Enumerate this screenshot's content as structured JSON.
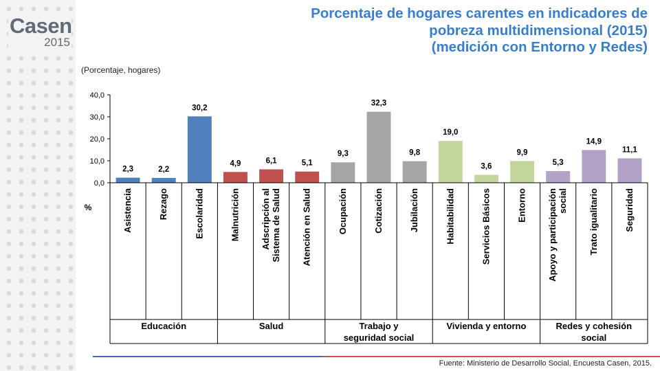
{
  "logo": {
    "word": "Casen",
    "year": "2015"
  },
  "title_lines": [
    "Porcentaje de hogares carentes en indicadores de",
    "pobreza multidimensional (2015)",
    "(medición con Entorno y Redes)"
  ],
  "subtitle": "(Porcentaje, hogares)",
  "source": "Fuente: Ministerio de Desarrollo Social, Encuesta Casen, 2015.",
  "chart_data": {
    "type": "bar",
    "title": "Porcentaje de hogares carentes en indicadores de pobreza multidimensional (2015) (medición con Entorno y Redes)",
    "ylabel": "%",
    "ylim": [
      0,
      40
    ],
    "yticks": [
      "0,0",
      "10,0",
      "20,0",
      "30,0",
      "40,0"
    ],
    "grid": false,
    "legend": "none",
    "categories": [
      [
        "Asistencia"
      ],
      [
        "Rezago"
      ],
      [
        "Escolaridad"
      ],
      [
        "Malnutrición"
      ],
      [
        "Adscripción al",
        "Sistema de Salud"
      ],
      [
        "Atención en Salud"
      ],
      [
        "Ocupación"
      ],
      [
        "Cotización"
      ],
      [
        "Jubilación"
      ],
      [
        "Habitabilidad"
      ],
      [
        "Servicios Básicos"
      ],
      [
        "Entorno"
      ],
      [
        "Apoyo y participación",
        "social"
      ],
      [
        "Trato igualitario"
      ],
      [
        "Seguridad"
      ]
    ],
    "values": [
      2.3,
      2.2,
      30.2,
      4.9,
      6.1,
      5.1,
      9.3,
      32.3,
      9.8,
      19.0,
      3.6,
      9.9,
      5.3,
      14.9,
      11.1
    ],
    "value_labels": [
      "2,3",
      "2,2",
      "30,2",
      "4,9",
      "6,1",
      "5,1",
      "9,3",
      "32,3",
      "9,8",
      "19,0",
      "3,6",
      "9,9",
      "5,3",
      "14,9",
      "11,1"
    ],
    "groups": [
      {
        "label": [
          "Educación"
        ],
        "count": 3,
        "color": "#4f81bd"
      },
      {
        "label": [
          "Salud"
        ],
        "count": 3,
        "color": "#c0504d"
      },
      {
        "label": [
          "Trabajo y",
          "seguridad social"
        ],
        "count": 3,
        "color": "#a5a5a5"
      },
      {
        "label": [
          "Vivienda y entorno"
        ],
        "count": 3,
        "color": "#c3d69b"
      },
      {
        "label": [
          "Redes y cohesión",
          "social"
        ],
        "count": 3,
        "color": "#b3a2c7"
      }
    ]
  }
}
